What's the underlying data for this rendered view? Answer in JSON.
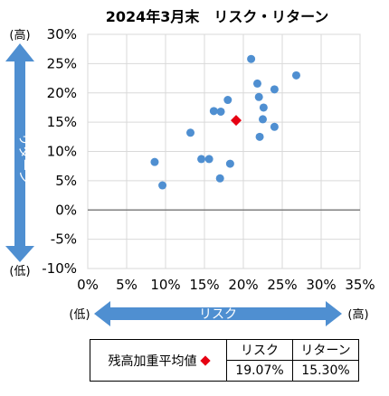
{
  "chart_data": {
    "type": "scatter",
    "title": "2024年3月末　リスク・リターン",
    "xlabel": "リスク",
    "ylabel": "リターン",
    "x_low_label": "(低)",
    "x_high_label": "(高)",
    "y_low_label": "(低)",
    "y_high_label": "(高)",
    "xlim": [
      0,
      35
    ],
    "ylim": [
      -10,
      30
    ],
    "x_ticks": [
      "0%",
      "5%",
      "10%",
      "15%",
      "20%",
      "25%",
      "30%",
      "35%"
    ],
    "y_ticks": [
      "30%",
      "25%",
      "20%",
      "15%",
      "10%",
      "5%",
      "0%",
      "-5%",
      "-10%"
    ],
    "grid": true,
    "series": [
      {
        "color": "#4f8fd1",
        "points": [
          [
            8.6,
            8.2
          ],
          [
            9.6,
            4.2
          ],
          [
            13.2,
            13.2
          ],
          [
            14.6,
            8.7
          ],
          [
            15.6,
            8.7
          ],
          [
            16.2,
            16.9
          ],
          [
            17.1,
            16.8
          ],
          [
            17.0,
            5.4
          ],
          [
            18.0,
            18.8
          ],
          [
            18.3,
            7.9
          ],
          [
            21.0,
            25.8
          ],
          [
            21.8,
            21.6
          ],
          [
            22.0,
            19.3
          ],
          [
            22.1,
            12.5
          ],
          [
            22.5,
            15.5
          ],
          [
            22.6,
            17.5
          ],
          [
            24.0,
            20.6
          ],
          [
            24.0,
            14.2
          ],
          [
            26.8,
            23.0
          ]
        ]
      },
      {
        "name": "残高加重平均値",
        "color": "#e60012",
        "marker": "diamond",
        "points": [
          [
            19.07,
            15.3
          ]
        ]
      }
    ]
  },
  "summary": {
    "row_label": "残高加重平均値",
    "risk_header": "リスク",
    "return_header": "リターン",
    "risk_value": "19.07%",
    "return_value": "15.30%"
  }
}
